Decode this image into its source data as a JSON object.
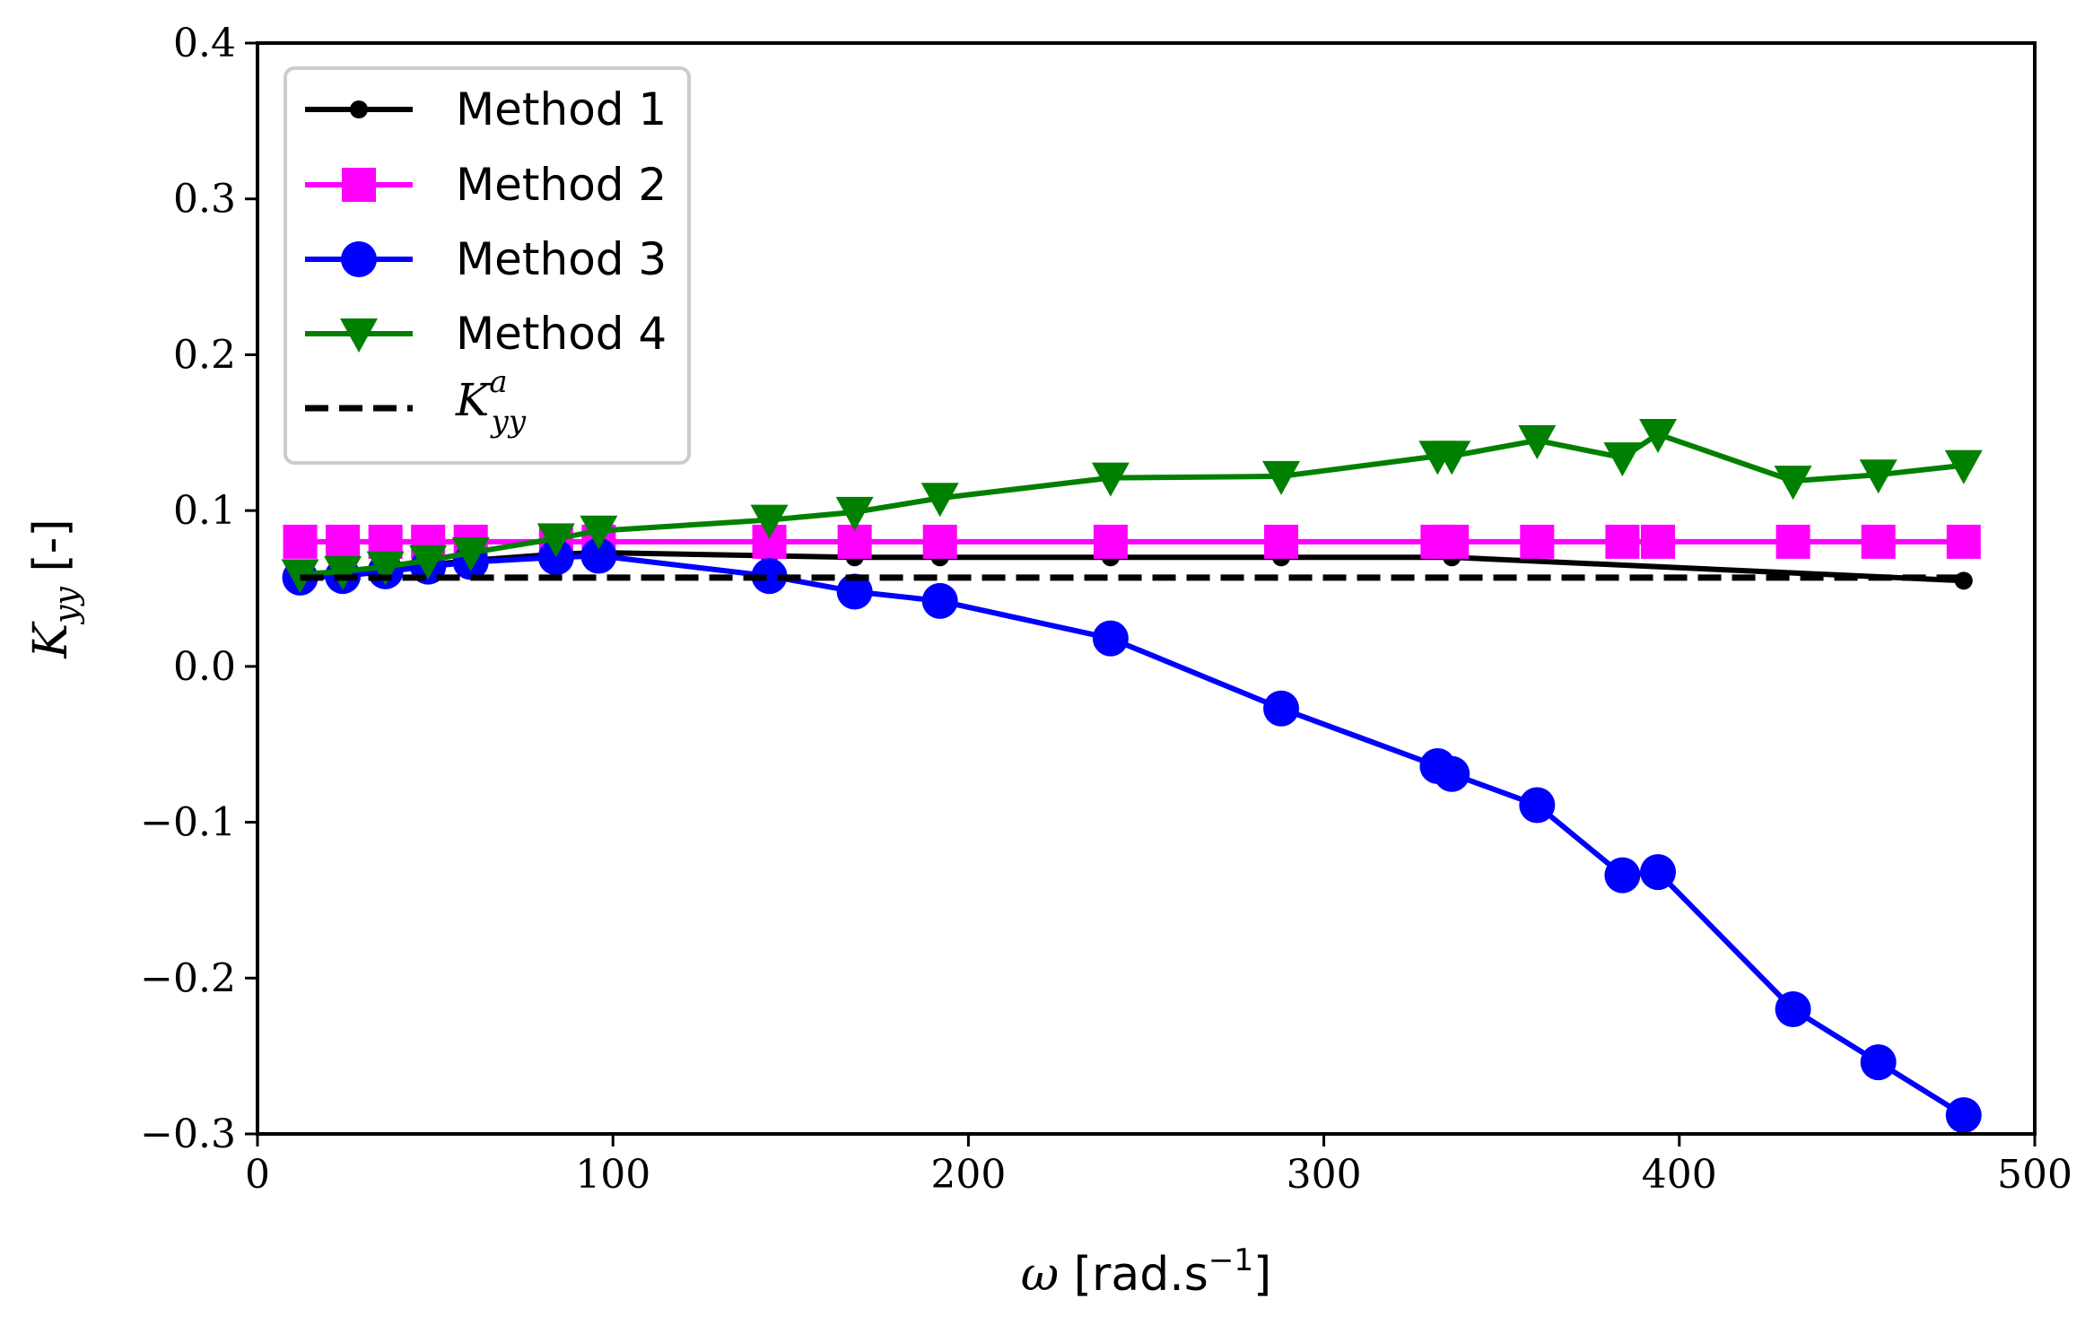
{
  "chart_data": {
    "type": "line",
    "title": "",
    "xlabel": "ω [rad.s⁻¹]",
    "ylabel": "Kyy [-]",
    "ylabel_parts": {
      "symbol": "K",
      "subscript": "yy",
      "unit": " [-]"
    },
    "xlabel_parts": {
      "symbol": "ω",
      "unit_base": " [rad.s",
      "unit_exp": "−1",
      "unit_end": "]"
    },
    "xlim": [
      0,
      500
    ],
    "ylim": [
      -0.3,
      0.4
    ],
    "xticks": [
      0,
      100,
      200,
      300,
      400,
      500
    ],
    "yticks": [
      -0.3,
      -0.2,
      -0.1,
      0.0,
      0.1,
      0.2,
      0.3,
      0.4
    ],
    "xtick_labels": [
      "0",
      "100",
      "200",
      "300",
      "400",
      "500"
    ],
    "ytick_labels": [
      "−0.3",
      "−0.2",
      "−0.1",
      "0.0",
      "0.1",
      "0.2",
      "0.3",
      "0.4"
    ],
    "grid": false,
    "legend_position": "top-left",
    "series": [
      {
        "name": "Method 1",
        "color": "#000000",
        "marker": "small-circle",
        "line": "solid",
        "x": [
          12,
          24,
          36,
          48,
          60,
          84,
          96,
          144,
          168,
          192,
          240,
          288,
          336,
          480
        ],
        "y": [
          0.059,
          0.06,
          0.062,
          0.065,
          0.068,
          0.072,
          0.073,
          0.071,
          0.07,
          0.07,
          0.07,
          0.07,
          0.07,
          0.055
        ]
      },
      {
        "name": "Method 2",
        "color": "#ff00ff",
        "marker": "square",
        "line": "solid",
        "x": [
          12,
          24,
          36,
          48,
          60,
          84,
          96,
          144,
          168,
          192,
          240,
          288,
          332,
          336,
          360,
          384,
          394,
          432,
          456,
          480
        ],
        "y": [
          0.08,
          0.08,
          0.08,
          0.08,
          0.08,
          0.08,
          0.08,
          0.08,
          0.08,
          0.08,
          0.08,
          0.08,
          0.08,
          0.08,
          0.08,
          0.08,
          0.08,
          0.08,
          0.08,
          0.08
        ]
      },
      {
        "name": "Method 3",
        "color": "#0000ff",
        "marker": "circle",
        "line": "solid",
        "x": [
          12,
          24,
          36,
          48,
          60,
          84,
          96,
          144,
          168,
          192,
          240,
          288,
          332,
          336,
          360,
          384,
          394,
          432,
          456,
          480
        ],
        "y": [
          0.057,
          0.058,
          0.061,
          0.064,
          0.067,
          0.07,
          0.071,
          0.058,
          0.048,
          0.042,
          0.018,
          -0.027,
          -0.064,
          -0.069,
          -0.089,
          -0.134,
          -0.132,
          -0.22,
          -0.254,
          -0.288
        ]
      },
      {
        "name": "Method 4",
        "color": "#008000",
        "marker": "triangle-down",
        "line": "solid",
        "x": [
          12,
          24,
          36,
          48,
          60,
          84,
          96,
          144,
          168,
          192,
          240,
          288,
          332,
          336,
          360,
          384,
          394,
          432,
          456,
          480
        ],
        "y": [
          0.059,
          0.061,
          0.064,
          0.068,
          0.073,
          0.082,
          0.087,
          0.094,
          0.099,
          0.108,
          0.121,
          0.122,
          0.135,
          0.135,
          0.145,
          0.134,
          0.149,
          0.119,
          0.123,
          0.129
        ]
      },
      {
        "name": "K^a_yy",
        "label_parts": {
          "symbol": "K",
          "superscript": "a",
          "subscript": "yy"
        },
        "color": "#000000",
        "marker": "none",
        "line": "dashed",
        "x": [
          12,
          480
        ],
        "y": [
          0.057,
          0.057
        ]
      }
    ]
  }
}
